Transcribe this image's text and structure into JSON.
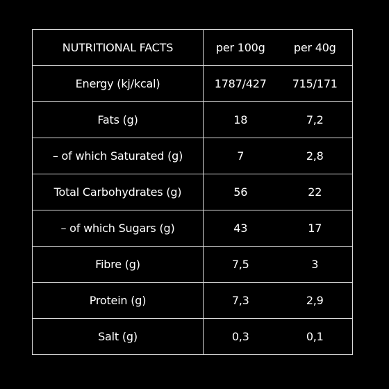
{
  "table": {
    "headers": [
      "NUTRITIONAL FACTS",
      "per 100g",
      "per 40g"
    ],
    "rows": [
      [
        "Energy (kj/kcal)",
        "1787/427",
        "715/171"
      ],
      [
        "Fats (g)",
        "18",
        "7,2"
      ],
      [
        "– of which Saturated (g)",
        "7",
        "2,8"
      ],
      [
        "Total Carbohydrates (g)",
        "56",
        "22"
      ],
      [
        "– of which Sugars (g)",
        "43",
        "17"
      ],
      [
        "Fibre (g)",
        "7,5",
        "3"
      ],
      [
        "Protein (g)",
        "7,3",
        "2,9"
      ],
      [
        "Salt (g)",
        "0,3",
        "0,1"
      ]
    ]
  },
  "colors": {
    "background": "#000000",
    "text": "#ffffff",
    "border": "#d9d9d9"
  }
}
